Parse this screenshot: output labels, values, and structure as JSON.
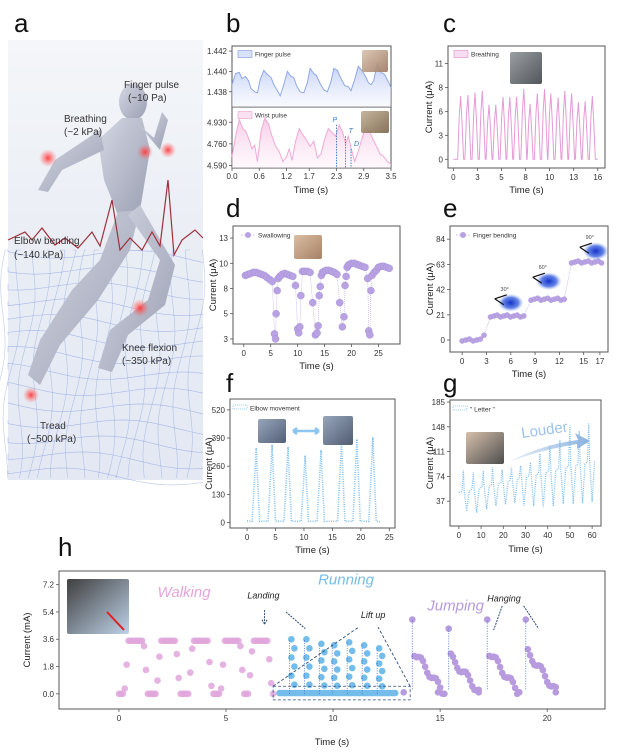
{
  "figure": {
    "panel_letters": [
      "a",
      "b",
      "c",
      "d",
      "e",
      "f",
      "g",
      "h"
    ]
  },
  "panel_a": {
    "labels": [
      {
        "name": "finger-pulse",
        "line1": "Finger pulse",
        "line2": "(~10 Pa)"
      },
      {
        "name": "breathing",
        "line1": "Breathing",
        "line2": "(~2 kPa)"
      },
      {
        "name": "elbow-bending",
        "line1": "Elbow bending",
        "line2": "(~140 kPa)"
      },
      {
        "name": "knee-flexion",
        "line1": "Knee flexion",
        "line2": "(~350 kPa)"
      },
      {
        "name": "tread",
        "line1": "Tread",
        "line2": "(~500 kPa)"
      }
    ],
    "colors": {
      "hotspot": "#ff4d4d",
      "body": "#b7bccb",
      "mesh": "#5b7fd6",
      "ecg": "#a0303a"
    }
  },
  "chart_data": [
    {
      "id": "b",
      "type": "area",
      "xlabel": "Time (s)",
      "xticks": [
        "0.0",
        "0.6",
        "1.2",
        "1.7",
        "2.3",
        "2.9",
        "3.5"
      ],
      "xlim": [
        0,
        3.5
      ],
      "subplots": [
        {
          "legend": "Finger pulse",
          "ylim": [
            1.4365,
            1.4425
          ],
          "yticks": [
            "1.442",
            "1.440",
            "1.438"
          ],
          "ytick_values": [
            1.442,
            1.44,
            1.438
          ],
          "color": "#8fa8e8",
          "x": [
            0,
            0.08,
            0.16,
            0.22,
            0.3,
            0.36,
            0.42,
            0.5,
            0.56,
            0.62,
            0.7,
            0.78,
            0.86,
            0.92,
            1.0,
            1.06,
            1.14,
            1.22,
            1.3,
            1.36,
            1.42,
            1.5,
            1.58,
            1.66,
            1.72,
            1.8,
            1.86,
            1.94,
            2.02,
            2.1,
            2.18,
            2.24,
            2.32,
            2.4,
            2.48,
            2.56,
            2.62,
            2.7,
            2.78,
            2.86,
            2.94,
            3.0,
            3.06,
            3.12,
            3.2,
            3.28,
            3.36,
            3.44,
            3.5
          ],
          "y": [
            1.4387,
            1.4398,
            1.4399,
            1.4393,
            1.4395,
            1.4391,
            1.4383,
            1.438,
            1.4379,
            1.4392,
            1.4401,
            1.4397,
            1.4394,
            1.4387,
            1.4381,
            1.4376,
            1.4387,
            1.44,
            1.4395,
            1.4394,
            1.4386,
            1.438,
            1.4379,
            1.4389,
            1.4403,
            1.4398,
            1.4396,
            1.4388,
            1.4382,
            1.438,
            1.439,
            1.4403,
            1.4401,
            1.4393,
            1.4386,
            1.4385,
            1.4381,
            1.4392,
            1.4405,
            1.4401,
            1.4395,
            1.4389,
            1.4387,
            1.4391,
            1.4408,
            1.4399,
            1.4397,
            1.439,
            1.4384
          ]
        },
        {
          "legend": "Wrist pulse",
          "ylim": [
            4.57,
            5.05
          ],
          "yticks": [
            "4.930",
            "4.760",
            "4.590"
          ],
          "ytick_values": [
            4.93,
            4.76,
            4.59
          ],
          "color": "#f0a9d6",
          "x": [
            0,
            0.08,
            0.16,
            0.24,
            0.3,
            0.38,
            0.44,
            0.5,
            0.56,
            0.64,
            0.72,
            0.8,
            0.88,
            0.96,
            1.04,
            1.12,
            1.2,
            1.26,
            1.32,
            1.4,
            1.48,
            1.56,
            1.64,
            1.72,
            1.8,
            1.88,
            1.96,
            2.04,
            2.12,
            2.2,
            2.28,
            2.36,
            2.44,
            2.5,
            2.56,
            2.62,
            2.7,
            2.78,
            2.86,
            2.94,
            3.02,
            3.1,
            3.18,
            3.26,
            3.34,
            3.42,
            3.5
          ],
          "y": [
            4.66,
            4.82,
            4.95,
            4.88,
            4.86,
            4.79,
            4.72,
            4.75,
            4.62,
            4.86,
            4.96,
            4.92,
            4.82,
            4.74,
            4.7,
            4.62,
            4.66,
            4.72,
            4.63,
            4.78,
            4.88,
            4.83,
            4.79,
            4.74,
            4.78,
            4.65,
            4.68,
            4.8,
            4.88,
            4.85,
            4.82,
            4.91,
            4.85,
            4.76,
            4.82,
            4.73,
            4.62,
            4.7,
            4.8,
            4.89,
            4.86,
            4.8,
            4.74,
            4.68,
            4.66,
            4.62,
            4.6
          ]
        }
      ],
      "annotations": [
        {
          "text": "P",
          "x": 2.3
        },
        {
          "text": "T",
          "x": 2.5
        },
        {
          "text": "D",
          "x": 2.62
        }
      ]
    },
    {
      "id": "c",
      "type": "line",
      "xlabel": "Time (s)",
      "ylabel": "Current (μA)",
      "legend": "Breathing",
      "color": "#e59ad8",
      "xlim": [
        -0.6,
        16.8
      ],
      "ylim": [
        -1,
        13
      ],
      "xticks": [
        "0",
        "3",
        "5",
        "8",
        "10",
        "13",
        "16"
      ],
      "xtick_values": [
        0,
        2.66,
        5.33,
        8,
        10.66,
        13.33,
        16
      ],
      "yticks": [
        "0",
        "3",
        "6",
        "8",
        "11"
      ],
      "ytick_values": [
        0,
        2.75,
        5.5,
        8.25,
        11
      ],
      "peak_times": [
        0.8,
        1.6,
        2.4,
        3.2,
        3.95,
        4.7,
        5.5,
        6.25,
        7.0,
        7.8,
        8.5,
        9.3,
        10.1,
        10.8,
        11.6,
        12.35,
        13.1,
        13.85,
        14.6,
        15.4
      ],
      "peak_values": [
        7.2,
        7.3,
        7.6,
        7.8,
        6.2,
        6.2,
        7.1,
        7.1,
        7.1,
        8.0,
        6.3,
        7.5,
        8.0,
        7.5,
        7.0,
        7.8,
        7.5,
        6.5,
        6.6,
        7.2
      ]
    },
    {
      "id": "d",
      "type": "scatter",
      "xlabel": "Time (s)",
      "ylabel": "Current (μA)",
      "legend": "Swallowing",
      "color": "#b8a2e3",
      "xlim": [
        -2,
        29
      ],
      "ylim": [
        2.5,
        14.2
      ],
      "xticks": [
        "0",
        "5",
        "10",
        "15",
        "20",
        "25"
      ],
      "xtick_values": [
        0,
        5,
        10,
        15,
        20,
        25
      ],
      "yticks": [
        "3",
        "5",
        "8",
        "10",
        "13"
      ],
      "ytick_values": [
        3,
        5.5,
        8,
        10.5,
        13
      ],
      "x": [
        0.3,
        0.8,
        1.3,
        1.8,
        2.3,
        2.8,
        3.3,
        3.8,
        4.3,
        4.8,
        5.3,
        5.7,
        5.9,
        6.0,
        6.2,
        6.4,
        6.7,
        7.1,
        7.6,
        8.1,
        8.6,
        9.1,
        9.6,
        10.0,
        10.2,
        10.4,
        10.6,
        10.9,
        11.3,
        11.8,
        12.3,
        12.8,
        13.3,
        13.6,
        13.8,
        14.0,
        14.2,
        14.4,
        14.6,
        14.9,
        15.3,
        15.8,
        16.3,
        16.8,
        17.3,
        17.8,
        18.3,
        18.6,
        18.8,
        19.0,
        19.2,
        19.4,
        19.6,
        20.0,
        20.5,
        21.0,
        21.5,
        22.0,
        22.5,
        23.0,
        23.2,
        23.4,
        23.6,
        23.8,
        24.2,
        24.6,
        25.0,
        25.5,
        26.0,
        26.5,
        27.0
      ],
      "y": [
        9.3,
        9.4,
        9.5,
        9.6,
        9.6,
        9.5,
        9.4,
        9.3,
        9.1,
        8.9,
        8.7,
        3.5,
        3.0,
        5.5,
        7.8,
        9.0,
        9.2,
        9.4,
        9.5,
        9.4,
        9.3,
        9.2,
        8.3,
        4.0,
        3.6,
        4.2,
        7.3,
        9.7,
        9.7,
        9.7,
        9.6,
        6.6,
        3.4,
        3.6,
        4.3,
        7.3,
        8.2,
        9.3,
        9.6,
        9.7,
        9.8,
        9.8,
        9.7,
        9.6,
        9.4,
        6.6,
        4.2,
        5.2,
        8.3,
        9.2,
        10.1,
        10.3,
        10.4,
        10.5,
        10.5,
        10.4,
        10.3,
        10.2,
        10.1,
        9.0,
        3.8,
        3.4,
        7.8,
        9.3,
        9.6,
        9.8,
        10.1,
        10.2,
        10.2,
        10.1,
        10.0
      ]
    },
    {
      "id": "e",
      "type": "scatter",
      "xlabel": "Time (s)",
      "ylabel": "Current (μA)",
      "legend": "Finger bending",
      "color": "#b8a2e3",
      "xlim": [
        -1.5,
        18
      ],
      "ylim": [
        -10,
        95
      ],
      "xticks": [
        "0",
        "3",
        "6",
        "9",
        "12",
        "15",
        "17"
      ],
      "xtick_values": [
        0,
        3,
        6,
        9,
        12,
        15,
        17
      ],
      "yticks": [
        "0",
        "21",
        "42",
        "63",
        "84"
      ],
      "ytick_values": [
        0,
        21,
        42,
        63,
        84
      ],
      "steps": [
        {
          "from": 0,
          "to": 2.7,
          "value": 0
        },
        {
          "from": 3.5,
          "to": 7.6,
          "value": 20
        },
        {
          "from": 8.5,
          "to": 12.6,
          "value": 34
        },
        {
          "from": 13.5,
          "to": 17.2,
          "value": 65
        }
      ],
      "angle_labels": [
        "30°",
        "60°",
        "90°"
      ]
    },
    {
      "id": "f",
      "type": "line",
      "xlabel": "Time (s)",
      "ylabel": "Current (μA)",
      "legend": "Elbow movement",
      "color": "#7fbff0",
      "xlim": [
        -3,
        26
      ],
      "ylim": [
        -25,
        570
      ],
      "xticks": [
        "0",
        "5",
        "10",
        "15",
        "20",
        "25"
      ],
      "xtick_values": [
        0,
        5,
        10,
        15,
        20,
        25
      ],
      "yticks": [
        "0",
        "130",
        "260",
        "390",
        "520"
      ],
      "ytick_values": [
        0,
        130,
        260,
        390,
        520
      ],
      "peak_times": [
        1.6,
        4.4,
        7.2,
        10.2,
        13.0,
        16.6,
        19.3,
        22.1
      ],
      "peak_values": [
        340,
        355,
        345,
        305,
        330,
        370,
        380,
        390
      ]
    },
    {
      "id": "g",
      "type": "line",
      "xlabel": "Time (s)",
      "ylabel": "Current (μA)",
      "legend": "\" Letter \"",
      "annotation": "Louder",
      "color": "#7fbff0",
      "xlim": [
        -4,
        64
      ],
      "ylim": [
        0,
        188
      ],
      "xticks": [
        "0",
        "10",
        "20",
        "30",
        "40",
        "50",
        "60"
      ],
      "xtick_values": [
        0,
        10,
        20,
        30,
        40,
        50,
        60
      ],
      "yticks": [
        "37",
        "74",
        "111",
        "148",
        "185"
      ],
      "ytick_values": [
        37,
        74,
        111,
        148,
        185
      ],
      "baseline_start": 50,
      "baseline_end": 98,
      "event_times": [
        2,
        6.5,
        11,
        15.2,
        19.5,
        23.7,
        27.8,
        32.2,
        36.5,
        41,
        45.5,
        50,
        54.2,
        58.5
      ],
      "event_peaks": [
        83,
        80,
        82,
        88,
        84,
        87,
        90,
        95,
        108,
        120,
        128,
        150,
        142,
        153
      ],
      "event_troughs": [
        22,
        20,
        25,
        30,
        32,
        34,
        30,
        30,
        28,
        30,
        33,
        33,
        34,
        36
      ]
    },
    {
      "id": "h",
      "type": "scatter",
      "xlabel": "Time (s)",
      "ylabel": "Current (mA)",
      "xlim": [
        -2.8,
        22.7
      ],
      "ylim": [
        -1,
        8.1
      ],
      "xticks": [
        "0",
        "5",
        "10",
        "15",
        "20"
      ],
      "xtick_values": [
        0,
        5,
        10,
        15,
        20
      ],
      "yticks": [
        "0.0",
        "1.8",
        "3.6",
        "5.4",
        "7.2"
      ],
      "ytick_values": [
        0,
        1.8,
        3.6,
        5.4,
        7.2
      ],
      "segments": [
        {
          "name": "Walking",
          "color": "#e0a6dc",
          "time_range": [
            0,
            7.2
          ],
          "peak_times": [
            0.8,
            2.3,
            3.8,
            5.3,
            6.6
          ],
          "peak_value": 3.5
        },
        {
          "name": "Running",
          "color": "#74bdea",
          "time_range": [
            7.5,
            13.5
          ],
          "peak_times": [
            8.1,
            8.8,
            9.5,
            10.1,
            10.8,
            11.5,
            12.2
          ],
          "peak_values": [
            3.6,
            3.6,
            3.3,
            3.2,
            3.4,
            3.2,
            3.0
          ]
        },
        {
          "name": "Jumping",
          "color": "#b79bde",
          "time_range": [
            13.5,
            20.7
          ],
          "peak_times": [
            13.7,
            15.4,
            17.2,
            19.0
          ],
          "peak_values": [
            4.9,
            4.3,
            4.9,
            4.9
          ]
        }
      ],
      "annotations": [
        {
          "text": "Walking",
          "kind": "phase"
        },
        {
          "text": "Running",
          "kind": "phase"
        },
        {
          "text": "Jumping",
          "kind": "phase"
        },
        {
          "text": "Landing",
          "kind": "note"
        },
        {
          "text": "Lift up",
          "kind": "note"
        },
        {
          "text": "Hanging",
          "kind": "note"
        }
      ]
    }
  ]
}
